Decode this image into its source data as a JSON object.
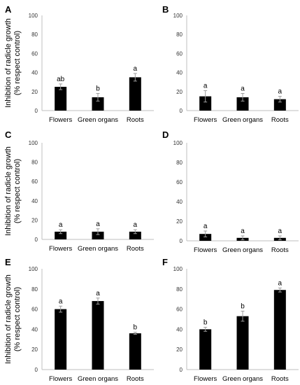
{
  "figure": {
    "ylabel_line1": "Inhibition of radicle growth",
    "ylabel_line2": "(% respect control)"
  },
  "colors": {
    "bar": "#000000",
    "error_bar": "#9e9e9e",
    "axis": "#bfbfbf"
  },
  "chart_data": [
    {
      "type": "bar",
      "panel_label": "A",
      "categories": [
        "Flowers",
        "Green organs",
        "Roots"
      ],
      "values": [
        25,
        14,
        35
      ],
      "errors": [
        3,
        4,
        4
      ],
      "significance_letters": [
        "ab",
        "b",
        "a"
      ],
      "ylim": [
        0,
        100
      ],
      "yticks": [
        0,
        20,
        40,
        60,
        80,
        100
      ],
      "ylabel": "Inhibition of radicle growth (% respect control)",
      "grid": false
    },
    {
      "type": "bar",
      "panel_label": "B",
      "categories": [
        "Flowers",
        "Green organs",
        "Roots"
      ],
      "values": [
        15,
        14,
        12
      ],
      "errors": [
        6,
        4,
        3
      ],
      "significance_letters": [
        "a",
        "a",
        "a"
      ],
      "ylim": [
        0,
        100
      ],
      "yticks": [
        0,
        20,
        40,
        60,
        80,
        100
      ],
      "grid": false
    },
    {
      "type": "bar",
      "panel_label": "C",
      "categories": [
        "Flowers",
        "Green organs",
        "Roots"
      ],
      "values": [
        8,
        8,
        8
      ],
      "errors": [
        2,
        3,
        2
      ],
      "significance_letters": [
        "a",
        "a",
        "a"
      ],
      "ylim": [
        0,
        100
      ],
      "yticks": [
        0,
        20,
        40,
        60,
        80,
        100
      ],
      "ylabel": "Inhibition of radicle growth (% respect control)",
      "grid": false
    },
    {
      "type": "bar",
      "panel_label": "D",
      "categories": [
        "Flowers",
        "Green organs",
        "Roots"
      ],
      "values": [
        7,
        3,
        3
      ],
      "errors": [
        3,
        2,
        2
      ],
      "significance_letters": [
        "a",
        "a",
        "a"
      ],
      "ylim": [
        0,
        100
      ],
      "yticks": [
        0,
        20,
        40,
        60,
        80,
        100
      ],
      "grid": false
    },
    {
      "type": "bar",
      "panel_label": "E",
      "categories": [
        "Flowers",
        "Green organs",
        "Roots"
      ],
      "values": [
        60,
        68,
        36
      ],
      "errors": [
        3,
        3,
        1
      ],
      "significance_letters": [
        "a",
        "a",
        "b"
      ],
      "ylim": [
        0,
        100
      ],
      "yticks": [
        0,
        20,
        40,
        60,
        80,
        100
      ],
      "ylabel": "Inhibition of radicle growth (% respect control)",
      "grid": false
    },
    {
      "type": "bar",
      "panel_label": "F",
      "categories": [
        "Flowers",
        "Green organs",
        "Roots"
      ],
      "values": [
        40,
        53,
        79
      ],
      "errors": [
        2,
        5,
        2
      ],
      "significance_letters": [
        "b",
        "b",
        "a"
      ],
      "ylim": [
        0,
        100
      ],
      "yticks": [
        0,
        20,
        40,
        60,
        80,
        100
      ],
      "grid": false
    }
  ]
}
